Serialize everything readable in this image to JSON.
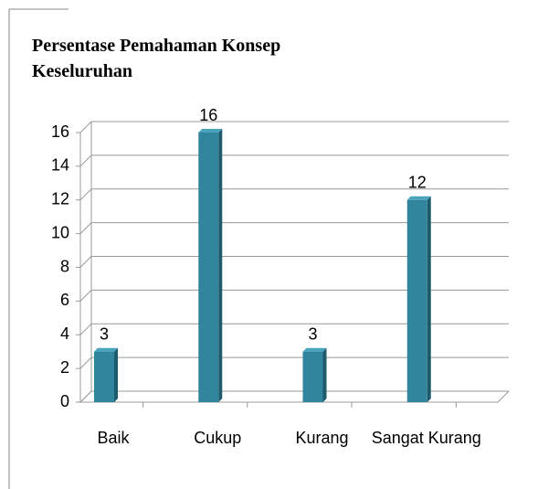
{
  "chart_data": {
    "type": "bar",
    "title": [
      "Persentase Pemahaman Konsep",
      "Keseluruhan"
    ],
    "categories": [
      "Baik",
      "Cukup",
      "Kurang",
      "Sangat Kurang"
    ],
    "values": [
      3,
      16,
      3,
      12
    ],
    "color": "#31859c",
    "ylim": [
      0,
      16
    ],
    "yticks": [
      0,
      2,
      4,
      6,
      8,
      10,
      12,
      14,
      16
    ],
    "grid": true
  }
}
